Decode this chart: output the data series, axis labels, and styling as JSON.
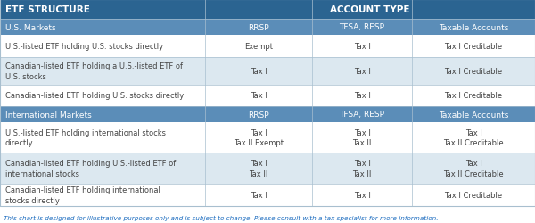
{
  "title_left": "ETF STRUCTURE",
  "title_right": "ACCOUNT TYPE",
  "header_bg": "#2b6491",
  "subheader_bg": "#5b8db8",
  "row_bg_white": "#ffffff",
  "row_bg_alt": "#dce8f0",
  "border_color": "#a8bfcf",
  "text_color": "#444444",
  "footer_color": "#1a6bbf",
  "col_headers": [
    "RRSP",
    "TFSA, RESP",
    "Taxable Accounts"
  ],
  "rows": [
    {
      "label": "U.S.-listed ETF holding U.S. stocks directly",
      "cols": [
        "Exempt",
        "Tax I",
        "Tax I Creditable"
      ],
      "bg": "#ffffff"
    },
    {
      "label": "Canadian-listed ETF holding a U.S.-listed ETF of\nU.S. stocks",
      "cols": [
        "Tax I",
        "Tax I",
        "Tax I Creditable"
      ],
      "bg": "#dce8f0"
    },
    {
      "label": "Canadian-listed ETF holding U.S. stocks directly",
      "cols": [
        "Tax I",
        "Tax I",
        "Tax I Creditable"
      ],
      "bg": "#ffffff"
    },
    {
      "label": "U.S.-listed ETF holding international stocks\ndirectly",
      "cols": [
        "Tax I\nTax II Exempt",
        "Tax I\nTax II",
        "Tax I\nTax II Creditable"
      ],
      "bg": "#ffffff"
    },
    {
      "label": "Canadian-listed ETF holding U.S.-listed ETF of\ninternational stocks",
      "cols": [
        "Tax I\nTax II",
        "Tax I\nTax II",
        "Tax I\nTax II Creditable"
      ],
      "bg": "#dce8f0"
    },
    {
      "label": "Canadian-listed ETF holding international\nstocks directly",
      "cols": [
        "Tax I",
        "Tax I",
        "Tax I Creditable"
      ],
      "bg": "#ffffff"
    }
  ],
  "footer": "This chart is designed for illustrative purposes only and is subject to change. Please consult with a tax specialist for more information."
}
